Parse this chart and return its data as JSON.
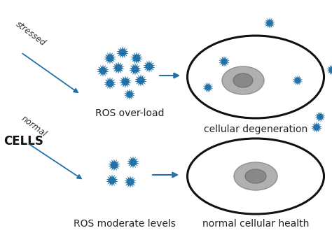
{
  "bg_color": "#ffffff",
  "cell_edge_color": "#111111",
  "ros_color": "#2272a8",
  "arrow_color": "#2272a8",
  "stressed_label": "stressed",
  "normal_label": "normal",
  "cells_label": "CELLS",
  "ros_overload_label": "ROS over-load",
  "ros_moderate_label": "ROS moderate levels",
  "cellular_degen_label": "cellular degeneration",
  "normal_health_label": "normal cellular health",
  "figsize": [
    4.74,
    3.46
  ],
  "dpi": 100
}
